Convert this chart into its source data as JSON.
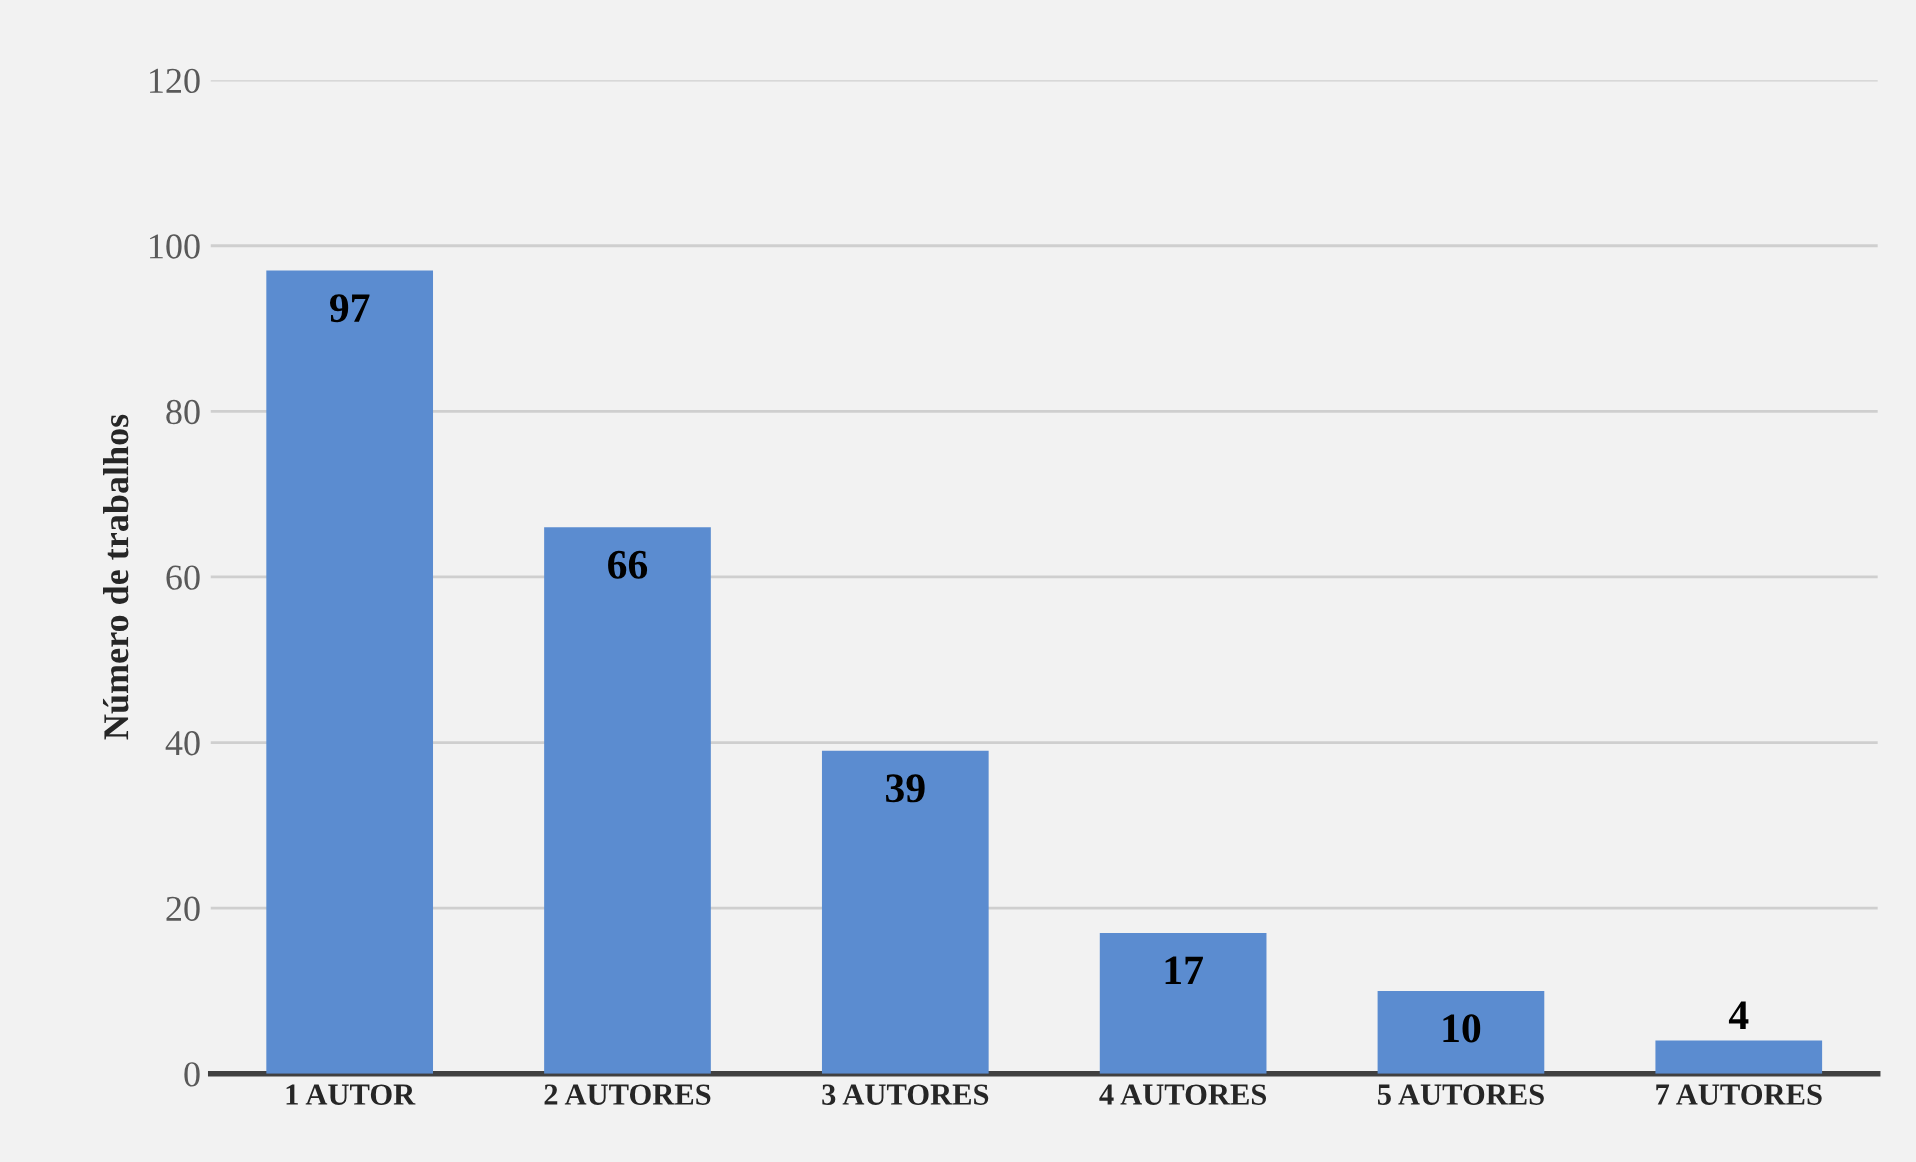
{
  "chart_data": {
    "type": "bar",
    "ylabel": "Número de trabalhos",
    "categories": [
      "1 AUTOR",
      "2 AUTORES",
      "3 AUTORES",
      "4 AUTORES",
      "5 AUTORES",
      "7 AUTORES"
    ],
    "values": [
      97,
      66,
      39,
      17,
      10,
      4
    ],
    "color": "#5b8cd0",
    "ylim": [
      0,
      120
    ],
    "yticks": [
      0,
      20,
      40,
      60,
      80,
      100,
      120
    ],
    "grid": "y",
    "data_labels": true
  }
}
